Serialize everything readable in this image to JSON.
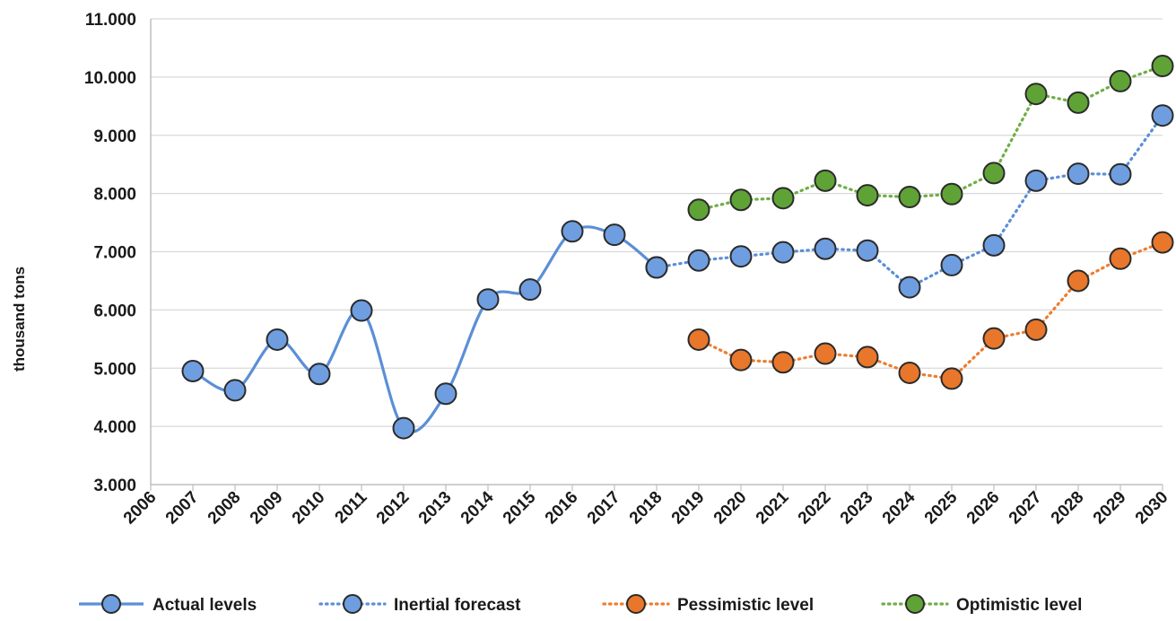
{
  "chart_data": {
    "type": "line",
    "title": "",
    "xlabel": "",
    "ylabel": "thousand tons",
    "ylim": [
      3000,
      11000
    ],
    "yticks": [
      3000,
      4000,
      5000,
      6000,
      7000,
      8000,
      9000,
      10000,
      11000
    ],
    "ytick_labels": [
      "3.000",
      "4.000",
      "5.000",
      "6.000",
      "7.000",
      "8.000",
      "9.000",
      "10.000",
      "11.000"
    ],
    "xlim": [
      2006,
      2030
    ],
    "xticks": [
      2006,
      2007,
      2008,
      2009,
      2010,
      2011,
      2012,
      2013,
      2014,
      2015,
      2016,
      2017,
      2018,
      2019,
      2020,
      2021,
      2022,
      2023,
      2024,
      2025,
      2026,
      2027,
      2028,
      2029,
      2030
    ],
    "grid": "horizontal",
    "legend_position": "bottom",
    "series": [
      {
        "name": "Actual levels",
        "color": "#5b8fd6",
        "marker_color": "#6e9ee0",
        "line_style": "solid-smooth",
        "x": [
          2007,
          2008,
          2009,
          2010,
          2011,
          2012,
          2013,
          2014,
          2015,
          2016,
          2017,
          2018
        ],
        "y": [
          4950,
          4620,
          5490,
          4900,
          5990,
          3970,
          4560,
          6180,
          6350,
          7350,
          7290,
          6730
        ]
      },
      {
        "name": "Inertial forecast",
        "color": "#5b8fd6",
        "marker_color": "#6e9ee0",
        "line_style": "dotted",
        "x": [
          2018,
          2019,
          2020,
          2021,
          2022,
          2023,
          2024,
          2025,
          2026,
          2027,
          2028,
          2029,
          2030
        ],
        "y": [
          6730,
          6850,
          6920,
          6990,
          7050,
          7020,
          6390,
          6770,
          7110,
          8220,
          8340,
          8330,
          9340
        ]
      },
      {
        "name": "Pessimistic level",
        "color": "#ed7d31",
        "marker_color": "#e8772b",
        "line_style": "dotted",
        "x": [
          2019,
          2020,
          2021,
          2022,
          2023,
          2024,
          2025,
          2026,
          2027,
          2028,
          2029,
          2030
        ],
        "y": [
          5490,
          5140,
          5100,
          5250,
          5190,
          4920,
          4820,
          5510,
          5660,
          6500,
          6880,
          7160
        ]
      },
      {
        "name": "Optimistic level",
        "color": "#70ad47",
        "marker_color": "#5fa336",
        "line_style": "dotted",
        "x": [
          2019,
          2020,
          2021,
          2022,
          2023,
          2024,
          2025,
          2026,
          2027,
          2028,
          2029,
          2030
        ],
        "y": [
          7720,
          7890,
          7920,
          8220,
          7970,
          7940,
          7990,
          8350,
          9710,
          9560,
          9930,
          10190
        ]
      }
    ]
  }
}
